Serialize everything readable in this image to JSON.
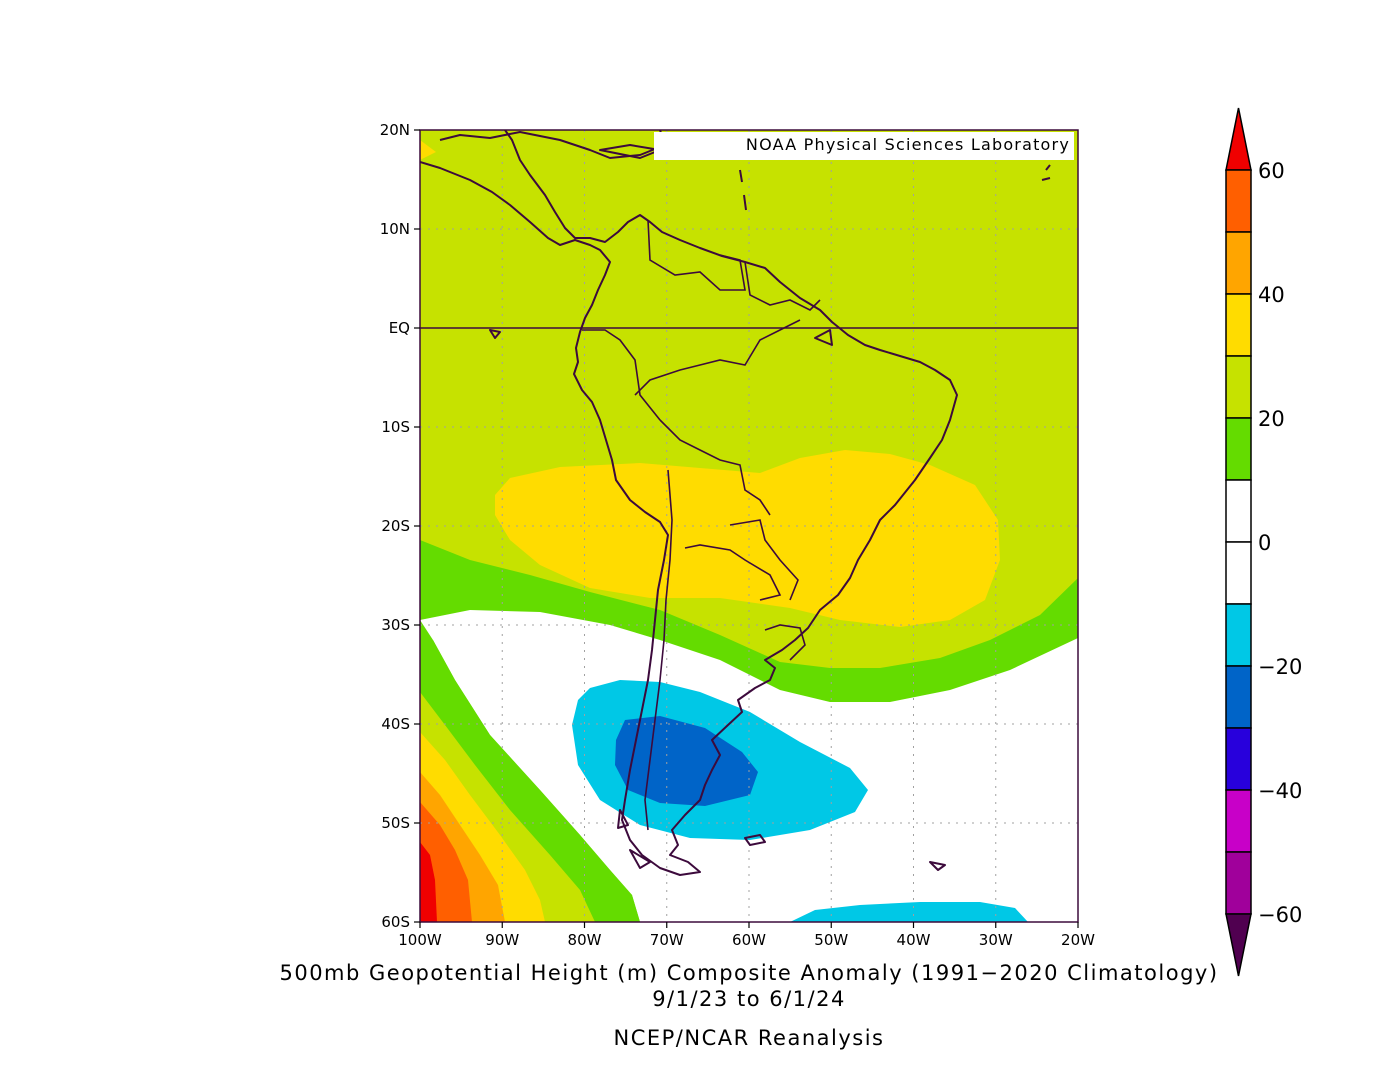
{
  "credit": "NOAA Physical Sciences Laboratory",
  "title": {
    "line1": "500mb Geopotential Height (m) Composite Anomaly (1991−2020 Climatology)",
    "line2": "9/1/23  to 6/1/24",
    "line3": "NCEP/NCAR Reanalysis"
  },
  "map": {
    "lon_range": [
      -100,
      -20
    ],
    "lat_range": [
      -60,
      20
    ],
    "lat_ticks": [
      {
        "value": 20,
        "label": "20N"
      },
      {
        "value": 10,
        "label": "10N"
      },
      {
        "value": 0,
        "label": "EQ"
      },
      {
        "value": -10,
        "label": "10S"
      },
      {
        "value": -20,
        "label": "20S"
      },
      {
        "value": -30,
        "label": "30S"
      },
      {
        "value": -40,
        "label": "40S"
      },
      {
        "value": -50,
        "label": "50S"
      },
      {
        "value": -60,
        "label": "60S"
      }
    ],
    "lon_ticks": [
      {
        "value": -100,
        "label": "100W"
      },
      {
        "value": -90,
        "label": "90W"
      },
      {
        "value": -80,
        "label": "80W"
      },
      {
        "value": -70,
        "label": "70W"
      },
      {
        "value": -60,
        "label": "60W"
      },
      {
        "value": -50,
        "label": "50W"
      },
      {
        "value": -40,
        "label": "40W"
      },
      {
        "value": -30,
        "label": "30W"
      },
      {
        "value": -20,
        "label": "20W"
      }
    ],
    "grid": "dotted",
    "equator_line": true
  },
  "colorbar": {
    "units": "m",
    "labels": [
      "60",
      "40",
      "20",
      "0",
      "−20",
      "−40",
      "−60"
    ],
    "bins": [
      {
        "range": [
          60,
          null
        ],
        "color": "#f00000"
      },
      {
        "range": [
          50,
          60
        ],
        "color": "#ff5f00"
      },
      {
        "range": [
          40,
          50
        ],
        "color": "#ffa500"
      },
      {
        "range": [
          30,
          40
        ],
        "color": "#ffdc00"
      },
      {
        "range": [
          20,
          30
        ],
        "color": "#c6e200"
      },
      {
        "range": [
          10,
          20
        ],
        "color": "#64dc00"
      },
      {
        "range": [
          0,
          10
        ],
        "color": "#ffffff"
      },
      {
        "range": [
          -10,
          0
        ],
        "color": "#ffffff"
      },
      {
        "range": [
          -20,
          -10
        ],
        "color": "#00c8e6"
      },
      {
        "range": [
          -30,
          -20
        ],
        "color": "#0064c8"
      },
      {
        "range": [
          -40,
          -30
        ],
        "color": "#2800dc"
      },
      {
        "range": [
          -50,
          -40
        ],
        "color": "#c800c8"
      },
      {
        "range": [
          -60,
          -50
        ],
        "color": "#a0009b"
      },
      {
        "range": [
          null,
          -60
        ],
        "color": "#500050"
      }
    ]
  }
}
